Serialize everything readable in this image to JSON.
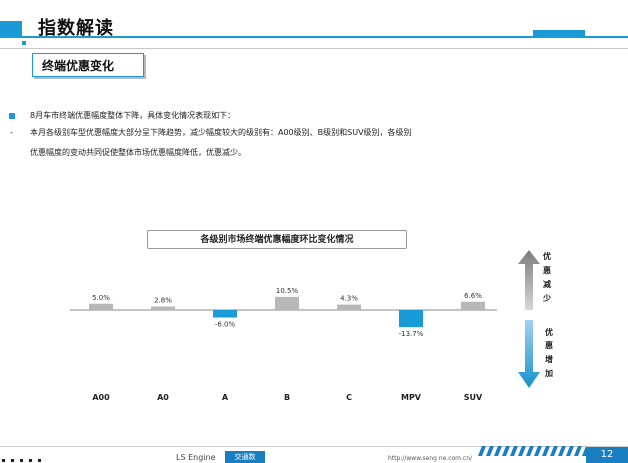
{
  "header": {
    "title": "指数解读"
  },
  "section": {
    "title": "终端优惠变化"
  },
  "body": {
    "bullet1": "8月车市终端优惠幅度整体下降，具体变化情况表现如下：",
    "bullet2_line1": "本月各级别车型优惠幅度大部分呈下降趋势，减少幅度较大的级别有：A00级别、B级别和SUV级别，各级别",
    "bullet2_line2": "优惠幅度的变动共同促使整体市场优惠幅度降低，优惠减少。"
  },
  "chart_data": {
    "type": "bar",
    "title": "各级别市场终端优惠幅度环比变化情况",
    "categories": [
      "A00",
      "A0",
      "A",
      "B",
      "C",
      "MPV",
      "SUV"
    ],
    "values": [
      5.0,
      2.8,
      -6.0,
      10.5,
      4.3,
      -13.7,
      6.6
    ],
    "value_labels": [
      "5.0%",
      "2.8%",
      "-6.0%",
      "10.5%",
      "4.3%",
      "-13.7%",
      "6.6%"
    ],
    "positive_color": "#b8b8b8",
    "negative_color": "#1a9bd7",
    "legend_up": [
      "优",
      "惠",
      "减",
      "少"
    ],
    "legend_down": [
      "优",
      "惠",
      "增",
      "加"
    ]
  },
  "footer": {
    "logo": "LS Engine",
    "logo_cn": "交通数",
    "url": "http://www.seng ne.com.cn/",
    "page": "12"
  },
  "colors": {
    "accent": "#1a9bd7"
  }
}
